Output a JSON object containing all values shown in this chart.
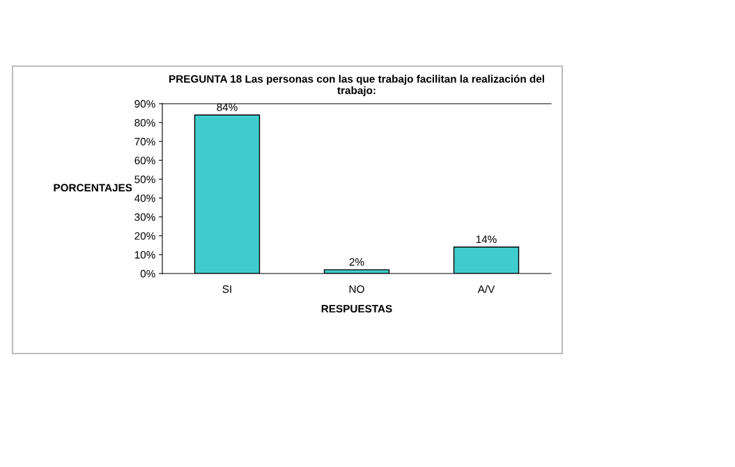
{
  "chart_data": {
    "type": "bar",
    "title": "PREGUNTA 18 Las personas con las que trabajo facilitan la realización del\ntrabajo:",
    "xlabel": "RESPUESTAS",
    "ylabel": "PORCENTAJES",
    "categories": [
      "SI",
      "NO",
      "A/V"
    ],
    "values": [
      84,
      2,
      14
    ],
    "value_labels": [
      "84%",
      "2%",
      "14%"
    ],
    "color": "#40cccc",
    "ylim": [
      0,
      90
    ],
    "yticks": [
      {
        "value": 0,
        "label": "0%"
      },
      {
        "value": 10,
        "label": "10%"
      },
      {
        "value": 20,
        "label": "20%"
      },
      {
        "value": 30,
        "label": "30%"
      },
      {
        "value": 40,
        "label": "40%"
      },
      {
        "value": 50,
        "label": "50%"
      },
      {
        "value": 60,
        "label": "60%"
      },
      {
        "value": 70,
        "label": "70%"
      },
      {
        "value": 80,
        "label": "80%"
      },
      {
        "value": 90,
        "label": "90%"
      }
    ],
    "grid": false,
    "legend": false
  }
}
